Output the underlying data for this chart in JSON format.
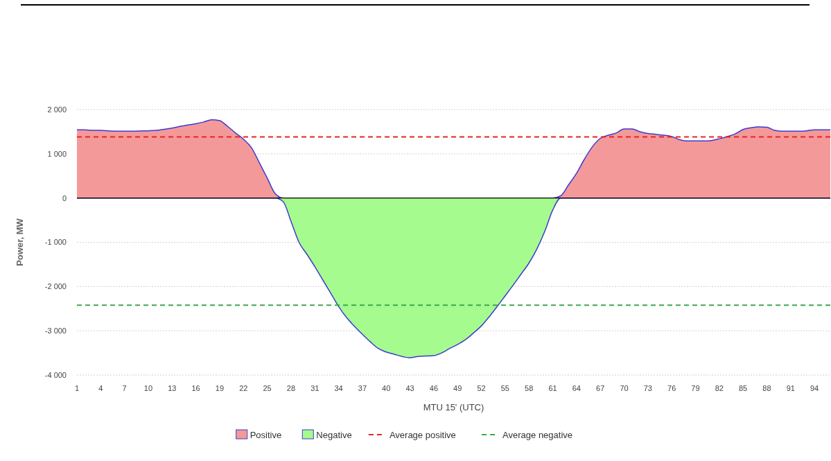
{
  "chart_data": {
    "type": "area",
    "xlabel": "MTU 15' (UTC)",
    "ylabel": "Power, MW",
    "categories": [
      "1",
      null,
      null,
      "4",
      null,
      null,
      "7",
      null,
      null,
      "10",
      null,
      null,
      "13",
      null,
      null,
      "16",
      null,
      null,
      "19",
      null,
      null,
      "22",
      null,
      null,
      "25",
      null,
      null,
      "28",
      null,
      null,
      "31",
      null,
      null,
      "34",
      null,
      null,
      "37",
      null,
      null,
      "40",
      null,
      null,
      "43",
      null,
      null,
      "46",
      null,
      null,
      "49",
      null,
      null,
      "52",
      null,
      null,
      "55",
      null,
      null,
      "58",
      null,
      null,
      "61",
      null,
      null,
      "64",
      null,
      null,
      "67",
      null,
      null,
      "70",
      null,
      null,
      "73",
      null,
      null,
      "76",
      null,
      null,
      "79",
      null,
      null,
      "82",
      null,
      null,
      "85",
      null,
      null,
      "88",
      null,
      null,
      "91",
      null,
      null,
      "94",
      null,
      null
    ],
    "series": [
      {
        "name": "Positive",
        "color": "#f4999a",
        "values": [
          1540,
          1540,
          1530,
          1530,
          1520,
          1510,
          1510,
          1510,
          1515,
          1520,
          1530,
          1555,
          1580,
          1620,
          1650,
          1680,
          1720,
          1770,
          1750,
          1620,
          1470,
          1330,
          1140,
          800,
          450,
          100,
          0,
          0,
          0,
          0,
          0,
          0,
          0,
          0,
          0,
          0,
          0,
          0,
          0,
          0,
          0,
          0,
          0,
          0,
          0,
          0,
          0,
          0,
          0,
          0,
          0,
          0,
          0,
          0,
          0,
          0,
          0,
          0,
          0,
          0,
          0,
          50,
          300,
          560,
          880,
          1160,
          1350,
          1420,
          1470,
          1560,
          1560,
          1500,
          1460,
          1440,
          1420,
          1390,
          1320,
          1290,
          1290,
          1290,
          1300,
          1340,
          1390,
          1450,
          1550,
          1590,
          1610,
          1600,
          1530,
          1510,
          1510,
          1510,
          1520,
          1540,
          1540,
          1540
        ]
      },
      {
        "name": "Negative",
        "color": "#a6fb8e",
        "values": [
          0,
          0,
          0,
          0,
          0,
          0,
          0,
          0,
          0,
          0,
          0,
          0,
          0,
          0,
          0,
          0,
          0,
          0,
          0,
          0,
          0,
          0,
          0,
          0,
          0,
          0,
          -80,
          -530,
          -1000,
          -1270,
          -1550,
          -1850,
          -2150,
          -2450,
          -2700,
          -2900,
          -3080,
          -3250,
          -3400,
          -3480,
          -3530,
          -3580,
          -3610,
          -3580,
          -3570,
          -3560,
          -3500,
          -3400,
          -3310,
          -3200,
          -3050,
          -2890,
          -2680,
          -2450,
          -2210,
          -1970,
          -1720,
          -1470,
          -1150,
          -750,
          -270,
          0,
          0,
          0,
          0,
          0,
          0,
          0,
          0,
          0,
          0,
          0,
          0,
          0,
          0,
          0,
          0,
          0,
          0,
          0,
          0,
          0,
          0,
          0,
          0,
          0,
          0,
          0,
          0,
          0,
          0,
          0,
          0,
          0,
          0,
          0
        ]
      }
    ],
    "ylim": [
      -4000,
      2000
    ],
    "yticks": [
      {
        "value": -4000,
        "label": "-4 000"
      },
      {
        "value": -3000,
        "label": "-3 000"
      },
      {
        "value": -2000,
        "label": "-2 000"
      },
      {
        "value": -1000,
        "label": "-1 000"
      },
      0,
      {
        "value": 1000,
        "label": "1 000"
      },
      {
        "value": 2000,
        "label": "2 000"
      }
    ],
    "ref_lines": [
      {
        "axis": "y",
        "value": 1380,
        "label": "Average positive",
        "color": "#e8231f",
        "line_style": "dashed"
      },
      {
        "axis": "y",
        "value": -2420,
        "label": "Average negative",
        "color": "#3aa84a",
        "line_style": "dashed"
      }
    ],
    "grid": "y",
    "legend": "bottom"
  }
}
